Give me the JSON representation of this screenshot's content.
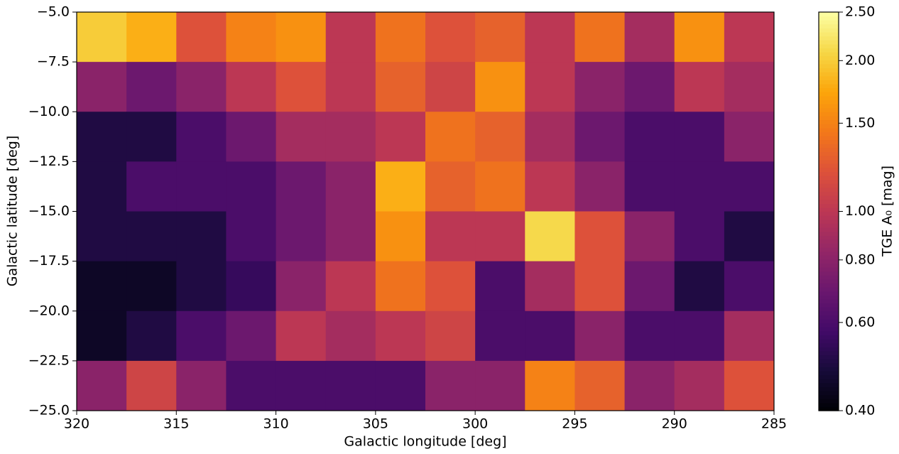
{
  "chart_data": {
    "type": "heatmap",
    "xlabel": "Galactic longitude [deg]",
    "ylabel": "Galactic latitude [deg]",
    "xlim": [
      320,
      285
    ],
    "ylim": [
      -25,
      -5
    ],
    "xticks": [
      320,
      315,
      310,
      305,
      300,
      295,
      290,
      285
    ],
    "yticks": [
      {
        "value": -5,
        "label": "−5.0"
      },
      {
        "value": -7.5,
        "label": "−7.5"
      },
      {
        "value": -10,
        "label": "−10.0"
      },
      {
        "value": -12.5,
        "label": "−12.5"
      },
      {
        "value": -15,
        "label": "−15.0"
      },
      {
        "value": -17.5,
        "label": "−17.5"
      },
      {
        "value": -20,
        "label": "−20.0"
      },
      {
        "value": -22.5,
        "label": "−22.5"
      },
      {
        "value": -25,
        "label": "−25.0"
      }
    ],
    "x_edges": [
      320,
      317.5,
      315,
      312.5,
      310,
      307.5,
      305,
      302.5,
      300,
      297.5,
      295,
      292.5,
      290,
      287.5,
      285
    ],
    "y_edges": [
      -5,
      -7.5,
      -10,
      -12.5,
      -15,
      -17.5,
      -20,
      -22.5,
      -25
    ],
    "values": [
      [
        2.0,
        1.8,
        1.2,
        1.5,
        1.6,
        1.0,
        1.4,
        1.2,
        1.3,
        1.0,
        1.4,
        0.9,
        1.6,
        1.0
      ],
      [
        0.8,
        0.7,
        0.8,
        1.0,
        1.2,
        1.0,
        1.3,
        1.1,
        1.6,
        1.0,
        0.8,
        0.7,
        1.0,
        0.9
      ],
      [
        0.5,
        0.5,
        0.6,
        0.7,
        0.9,
        0.9,
        1.0,
        1.4,
        1.3,
        0.9,
        0.7,
        0.6,
        0.6,
        0.8
      ],
      [
        0.5,
        0.6,
        0.6,
        0.6,
        0.7,
        0.8,
        1.8,
        1.3,
        1.4,
        1.0,
        0.8,
        0.6,
        0.6,
        0.6
      ],
      [
        0.5,
        0.5,
        0.5,
        0.6,
        0.7,
        0.8,
        1.6,
        1.0,
        1.0,
        2.1,
        1.2,
        0.8,
        0.6,
        0.5
      ],
      [
        0.45,
        0.45,
        0.5,
        0.55,
        0.8,
        1.0,
        1.4,
        1.2,
        0.6,
        0.9,
        1.2,
        0.7,
        0.5,
        0.6
      ],
      [
        0.45,
        0.5,
        0.6,
        0.7,
        1.0,
        0.9,
        1.0,
        1.1,
        0.6,
        0.6,
        0.8,
        0.6,
        0.6,
        0.9
      ],
      [
        0.8,
        1.1,
        0.8,
        0.6,
        0.6,
        0.6,
        0.6,
        0.8,
        0.8,
        1.5,
        1.3,
        0.8,
        0.9,
        1.2
      ]
    ],
    "colorbar": {
      "label": "TGE A₀ [mag]",
      "lim": [
        0.4,
        2.5
      ],
      "scale": "log",
      "colormap": "inferno",
      "ticks": [
        {
          "value": 0.4,
          "label": "0.40"
        },
        {
          "value": 0.6,
          "label": "0.60"
        },
        {
          "value": 0.8,
          "label": "0.80"
        },
        {
          "value": 1.0,
          "label": "1.00"
        },
        {
          "value": 1.5,
          "label": "1.50"
        },
        {
          "value": 2.0,
          "label": "2.00"
        },
        {
          "value": 2.5,
          "label": "2.50"
        }
      ]
    }
  }
}
